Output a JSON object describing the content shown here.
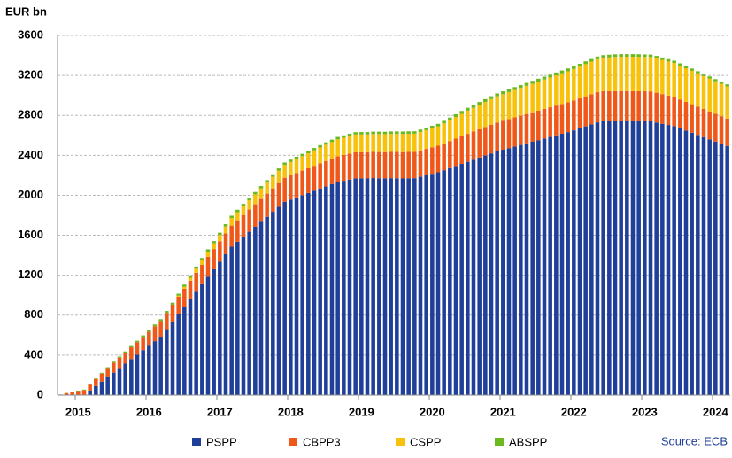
{
  "chart_data": {
    "type": "stacked_bar",
    "y_label": "EUR bn",
    "source": "Source: ECB",
    "categories": [
      null,
      null,
      null,
      "2015",
      null,
      null,
      null,
      null,
      null,
      null,
      null,
      null,
      null,
      null,
      null,
      "2016",
      null,
      null,
      null,
      null,
      null,
      null,
      null,
      null,
      null,
      null,
      null,
      "2017",
      null,
      null,
      null,
      null,
      null,
      null,
      null,
      null,
      null,
      null,
      null,
      "2018",
      null,
      null,
      null,
      null,
      null,
      null,
      null,
      null,
      null,
      null,
      null,
      "2019",
      null,
      null,
      null,
      null,
      null,
      null,
      null,
      null,
      null,
      null,
      null,
      "2020",
      null,
      null,
      null,
      null,
      null,
      null,
      null,
      null,
      null,
      null,
      null,
      "2021",
      null,
      null,
      null,
      null,
      null,
      null,
      null,
      null,
      null,
      null,
      null,
      "2022",
      null,
      null,
      null,
      null,
      null,
      null,
      null,
      null,
      null,
      null,
      null,
      "2023",
      null,
      null,
      null,
      null,
      null,
      null,
      null,
      null,
      null,
      null,
      null,
      "2024",
      null,
      null
    ],
    "series": [
      {
        "name": "PSPP",
        "color": "#1f3f99",
        "values": [
          0,
          0,
          0,
          0,
          0,
          45,
          90,
          135,
          180,
          225,
          270,
          315,
          360,
          405,
          450,
          495,
          540,
          585,
          660,
          735,
          810,
          885,
          960,
          1035,
          1110,
          1185,
          1260,
          1335,
          1410,
          1485,
          1535,
          1585,
          1635,
          1685,
          1735,
          1785,
          1835,
          1885,
          1935,
          1957,
          1979,
          2001,
          2023,
          2045,
          2067,
          2089,
          2111,
          2133,
          2145,
          2157,
          2169,
          2170,
          2168,
          2172,
          2170,
          2169,
          2171,
          2170,
          2168,
          2170,
          2171,
          2185,
          2200,
          2215,
          2230,
          2251,
          2272,
          2293,
          2314,
          2335,
          2356,
          2377,
          2398,
          2419,
          2440,
          2456,
          2472,
          2488,
          2504,
          2520,
          2536,
          2552,
          2568,
          2584,
          2600,
          2616,
          2632,
          2650,
          2670,
          2690,
          2710,
          2730,
          2740,
          2740,
          2740,
          2740,
          2740,
          2740,
          2740,
          2740,
          2740,
          2728,
          2716,
          2704,
          2692,
          2670,
          2648,
          2626,
          2604,
          2582,
          2560,
          2538,
          2516,
          2494
        ]
      },
      {
        "name": "CBPP3",
        "color": "#f0581a",
        "values": [
          5,
          20,
          30,
          40,
          50,
          60,
          70,
          80,
          90,
          100,
          105,
          110,
          118,
          125,
          133,
          140,
          150,
          157,
          163,
          170,
          175,
          180,
          185,
          190,
          195,
          200,
          202,
          205,
          208,
          212,
          215,
          218,
          222,
          225,
          228,
          231,
          234,
          237,
          240,
          242,
          244,
          246,
          248,
          250,
          252,
          254,
          256,
          258,
          259,
          260,
          261,
          261,
          262,
          262,
          263,
          263,
          263,
          264,
          264,
          264,
          264,
          264,
          264,
          265,
          266,
          268,
          271,
          274,
          277,
          280,
          282,
          284,
          286,
          288,
          289,
          290,
          291,
          292,
          293,
          294,
          295,
          296,
          297,
          297,
          298,
          298,
          299,
          300,
          300,
          301,
          301,
          302,
          302,
          302,
          303,
          303,
          303,
          303,
          302,
          301,
          300,
          299,
          297,
          294,
          292,
          290,
          288,
          286,
          284,
          282,
          280,
          278,
          276,
          274
        ]
      },
      {
        "name": "CSPP",
        "color": "#f9c20a",
        "values": [
          0,
          0,
          0,
          0,
          0,
          0,
          0,
          0,
          0,
          0,
          0,
          0,
          0,
          0,
          0,
          0,
          0,
          0,
          0,
          0,
          10,
          20,
          30,
          40,
          45,
          51,
          57,
          63,
          69,
          75,
          81,
          87,
          93,
          99,
          105,
          111,
          117,
          123,
          129,
          134,
          139,
          144,
          149,
          154,
          159,
          163,
          166,
          169,
          172,
          175,
          178,
          178,
          179,
          179,
          180,
          180,
          181,
          181,
          182,
          182,
          182,
          185,
          188,
          191,
          194,
          200,
          208,
          216,
          224,
          232,
          238,
          244,
          250,
          256,
          262,
          266,
          270,
          274,
          278,
          282,
          286,
          290,
          294,
          298,
          302,
          306,
          310,
          314,
          318,
          322,
          326,
          330,
          334,
          338,
          342,
          344,
          344,
          344,
          344,
          344,
          344,
          343,
          342,
          341,
          340,
          338,
          336,
          334,
          332,
          330,
          328,
          326,
          324,
          322
        ]
      },
      {
        "name": "ABSPP",
        "color": "#6aba1d",
        "values": [
          1,
          2,
          3,
          4,
          5,
          6,
          7,
          8,
          9,
          10,
          11,
          12,
          13,
          14,
          15,
          16,
          17,
          18,
          19,
          20,
          20,
          21,
          21,
          22,
          22,
          23,
          23,
          23,
          24,
          24,
          24,
          24,
          24,
          24,
          24,
          24,
          24,
          24,
          24,
          24,
          24,
          24,
          24,
          24,
          24,
          24,
          24,
          24,
          24,
          24,
          24,
          24,
          24,
          24,
          24,
          24,
          24,
          24,
          24,
          24,
          24,
          24,
          24,
          25,
          25,
          26,
          27,
          28,
          29,
          29,
          29,
          29,
          29,
          29,
          29,
          29,
          29,
          29,
          29,
          29,
          29,
          29,
          29,
          29,
          29,
          29,
          29,
          28,
          28,
          28,
          27,
          27,
          27,
          27,
          26,
          26,
          26,
          26,
          26,
          25,
          25,
          25,
          24,
          24,
          24,
          23,
          23,
          23,
          22,
          22,
          22,
          21,
          21,
          21
        ]
      }
    ],
    "ylim": [
      0,
      3600
    ],
    "yticks": [
      0,
      400,
      800,
      1200,
      1600,
      2000,
      2400,
      2800,
      3200,
      3600
    ],
    "grid": true
  }
}
